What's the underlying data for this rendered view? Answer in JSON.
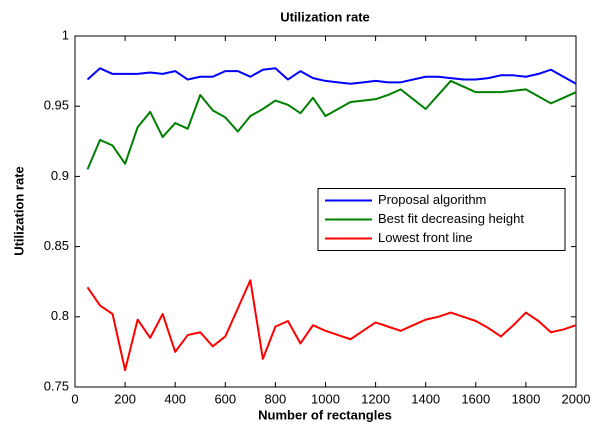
{
  "chart_data": {
    "type": "line",
    "title": "Utilization rate",
    "x_label": "Number of rectangles",
    "y_label": "Utilization rate",
    "x": [
      50,
      100,
      150,
      200,
      250,
      300,
      350,
      400,
      450,
      500,
      550,
      600,
      650,
      700,
      750,
      800,
      850,
      900,
      950,
      1000,
      1050,
      1100,
      1150,
      1200,
      1250,
      1300,
      1350,
      1400,
      1450,
      1500,
      1550,
      1600,
      1650,
      1700,
      1750,
      1800,
      1850,
      1900,
      1950,
      2000
    ],
    "series": [
      {
        "name": "Proposal algorithm",
        "color": "#0000ff",
        "values": [
          0.969,
          0.977,
          0.973,
          0.973,
          0.973,
          0.974,
          0.973,
          0.975,
          0.969,
          0.971,
          0.971,
          0.975,
          0.975,
          0.971,
          0.976,
          0.977,
          0.969,
          0.975,
          0.97,
          0.968,
          0.967,
          0.966,
          0.967,
          0.968,
          0.967,
          0.967,
          0.969,
          0.971,
          0.971,
          0.97,
          0.969,
          0.969,
          0.97,
          0.972,
          0.972,
          0.971,
          0.973,
          0.976,
          0.971,
          0.966
        ]
      },
      {
        "name": "Best fit decreasing height",
        "color": "#008000",
        "values": [
          0.905,
          0.926,
          0.922,
          0.909,
          0.935,
          0.946,
          0.928,
          0.938,
          0.934,
          0.958,
          0.947,
          0.942,
          0.932,
          0.943,
          0.948,
          0.954,
          0.951,
          0.945,
          0.956,
          0.943,
          0.948,
          0.953,
          0.954,
          0.955,
          0.958,
          0.962,
          0.955,
          0.948,
          0.958,
          0.968,
          0.964,
          0.96,
          0.96,
          0.96,
          0.961,
          0.962,
          0.957,
          0.952,
          0.956,
          0.96
        ]
      },
      {
        "name": "Lowest front line",
        "color": "#ff0000",
        "values": [
          0.821,
          0.808,
          0.802,
          0.762,
          0.798,
          0.785,
          0.802,
          0.775,
          0.787,
          0.789,
          0.779,
          0.786,
          0.806,
          0.826,
          0.77,
          0.793,
          0.797,
          0.781,
          0.794,
          0.79,
          0.787,
          0.784,
          0.79,
          0.796,
          0.793,
          0.79,
          0.794,
          0.798,
          0.8,
          0.803,
          0.8,
          0.797,
          0.792,
          0.786,
          0.794,
          0.803,
          0.797,
          0.789,
          0.791,
          0.794
        ]
      }
    ],
    "xlim": [
      0,
      2000
    ],
    "xticks": [
      0,
      200,
      400,
      600,
      800,
      1000,
      1200,
      1400,
      1600,
      1800,
      2000
    ],
    "ylim": [
      0.75,
      1
    ],
    "yticks": [
      0.75,
      0.8,
      0.85,
      0.9,
      0.95,
      1
    ],
    "grid": false,
    "legend_position": "east"
  }
}
